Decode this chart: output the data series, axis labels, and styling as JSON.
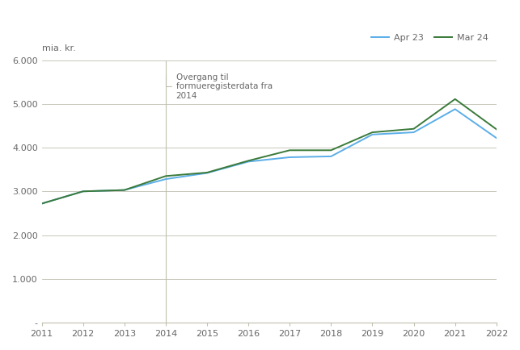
{
  "years": [
    2011,
    2012,
    2013,
    2014,
    2015,
    2016,
    2017,
    2018,
    2019,
    2020,
    2021,
    2022
  ],
  "apr23": [
    2720,
    3000,
    3030,
    3280,
    3420,
    3680,
    3780,
    3800,
    4300,
    4350,
    4880,
    4220
  ],
  "mar24": [
    2720,
    3000,
    3030,
    3350,
    3430,
    3700,
    3940,
    3940,
    4350,
    4430,
    5110,
    4420
  ],
  "apr23_color": "#5BAEE8",
  "mar24_color": "#3A7A3A",
  "line_width": 1.4,
  "ylim": [
    0,
    6000
  ],
  "yticks": [
    0,
    1000,
    2000,
    3000,
    4000,
    5000,
    6000
  ],
  "ytick_labels": [
    "-",
    "1.000",
    "2.000",
    "3.000",
    "4.000",
    "5.000",
    "6.000"
  ],
  "ylabel": "mia. kr.",
  "legend_apr23": "Apr 23",
  "legend_mar24": "Mar 24",
  "annotation_text": "Overgang til\nformueregisterdata fra\n2014",
  "vline_x": 2014,
  "background_color": "#ffffff",
  "grid_color": "#b0b0a0",
  "tick_color": "#666666",
  "spine_color": "#c0c0b0"
}
